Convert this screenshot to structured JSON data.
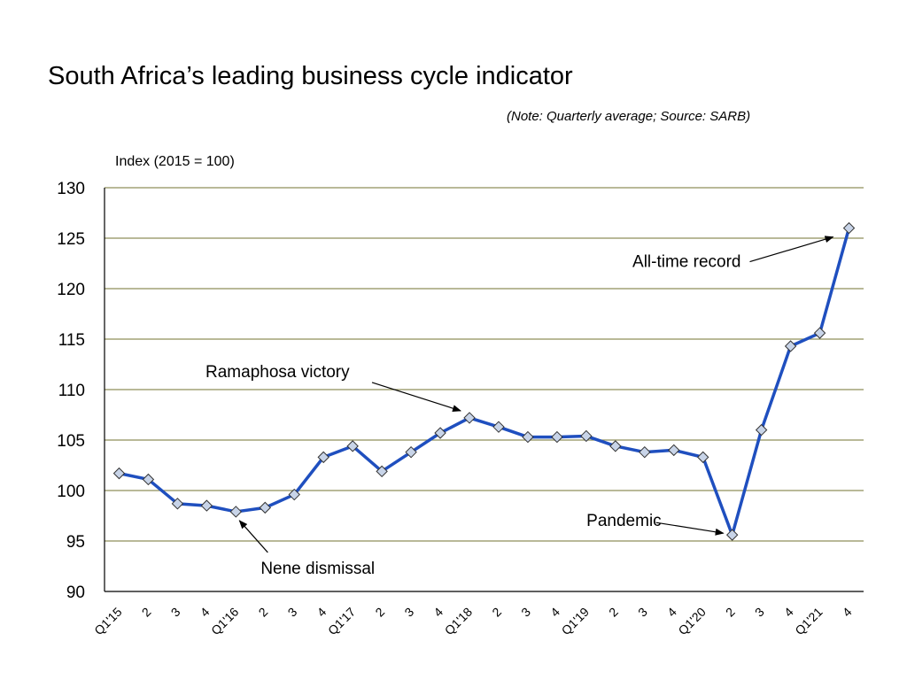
{
  "title": "South Africa’s leading business cycle indicator",
  "note": "(Note: Quarterly average; Source: SARB)",
  "colors": {
    "line": "#1f4fbf",
    "marker_fill": "#c8d4e8",
    "marker_stroke": "#333333",
    "grid": "#8f8f5a",
    "axis": "#000000"
  },
  "chart_data": {
    "type": "line",
    "title": "South Africa’s leading business cycle indicator",
    "ylabel": "Index (2015 = 100)",
    "xlabel": "",
    "ylim": [
      90,
      130
    ],
    "yticks": [
      90,
      95,
      100,
      105,
      110,
      115,
      120,
      125,
      130
    ],
    "grid": true,
    "categories": [
      "Q1'15",
      "2",
      "3",
      "4",
      "Q1'16",
      "2",
      "3",
      "4",
      "Q1'17",
      "2",
      "3",
      "4",
      "Q1'18",
      "2",
      "3",
      "4",
      "Q1'19",
      "2",
      "3",
      "4",
      "Q1'20",
      "2",
      "3",
      "4",
      "Q1'21",
      "4"
    ],
    "series": [
      {
        "values": [
          101.7,
          101.1,
          98.7,
          98.5,
          97.9,
          98.3,
          99.6,
          103.3,
          104.4,
          101.9,
          103.8,
          105.7,
          107.2,
          106.3,
          105.3,
          105.3,
          105.4,
          104.4,
          103.8,
          104.0,
          103.3,
          95.6,
          106.0,
          114.3,
          115.6,
          126.0
        ]
      }
    ],
    "annotations": [
      {
        "text": "Ramaphosa victory",
        "index": 12
      },
      {
        "text": "Nene dismissal",
        "index": 4
      },
      {
        "text": "Pandemic",
        "index": 21
      },
      {
        "text": "All-time record",
        "index": 25
      }
    ]
  }
}
